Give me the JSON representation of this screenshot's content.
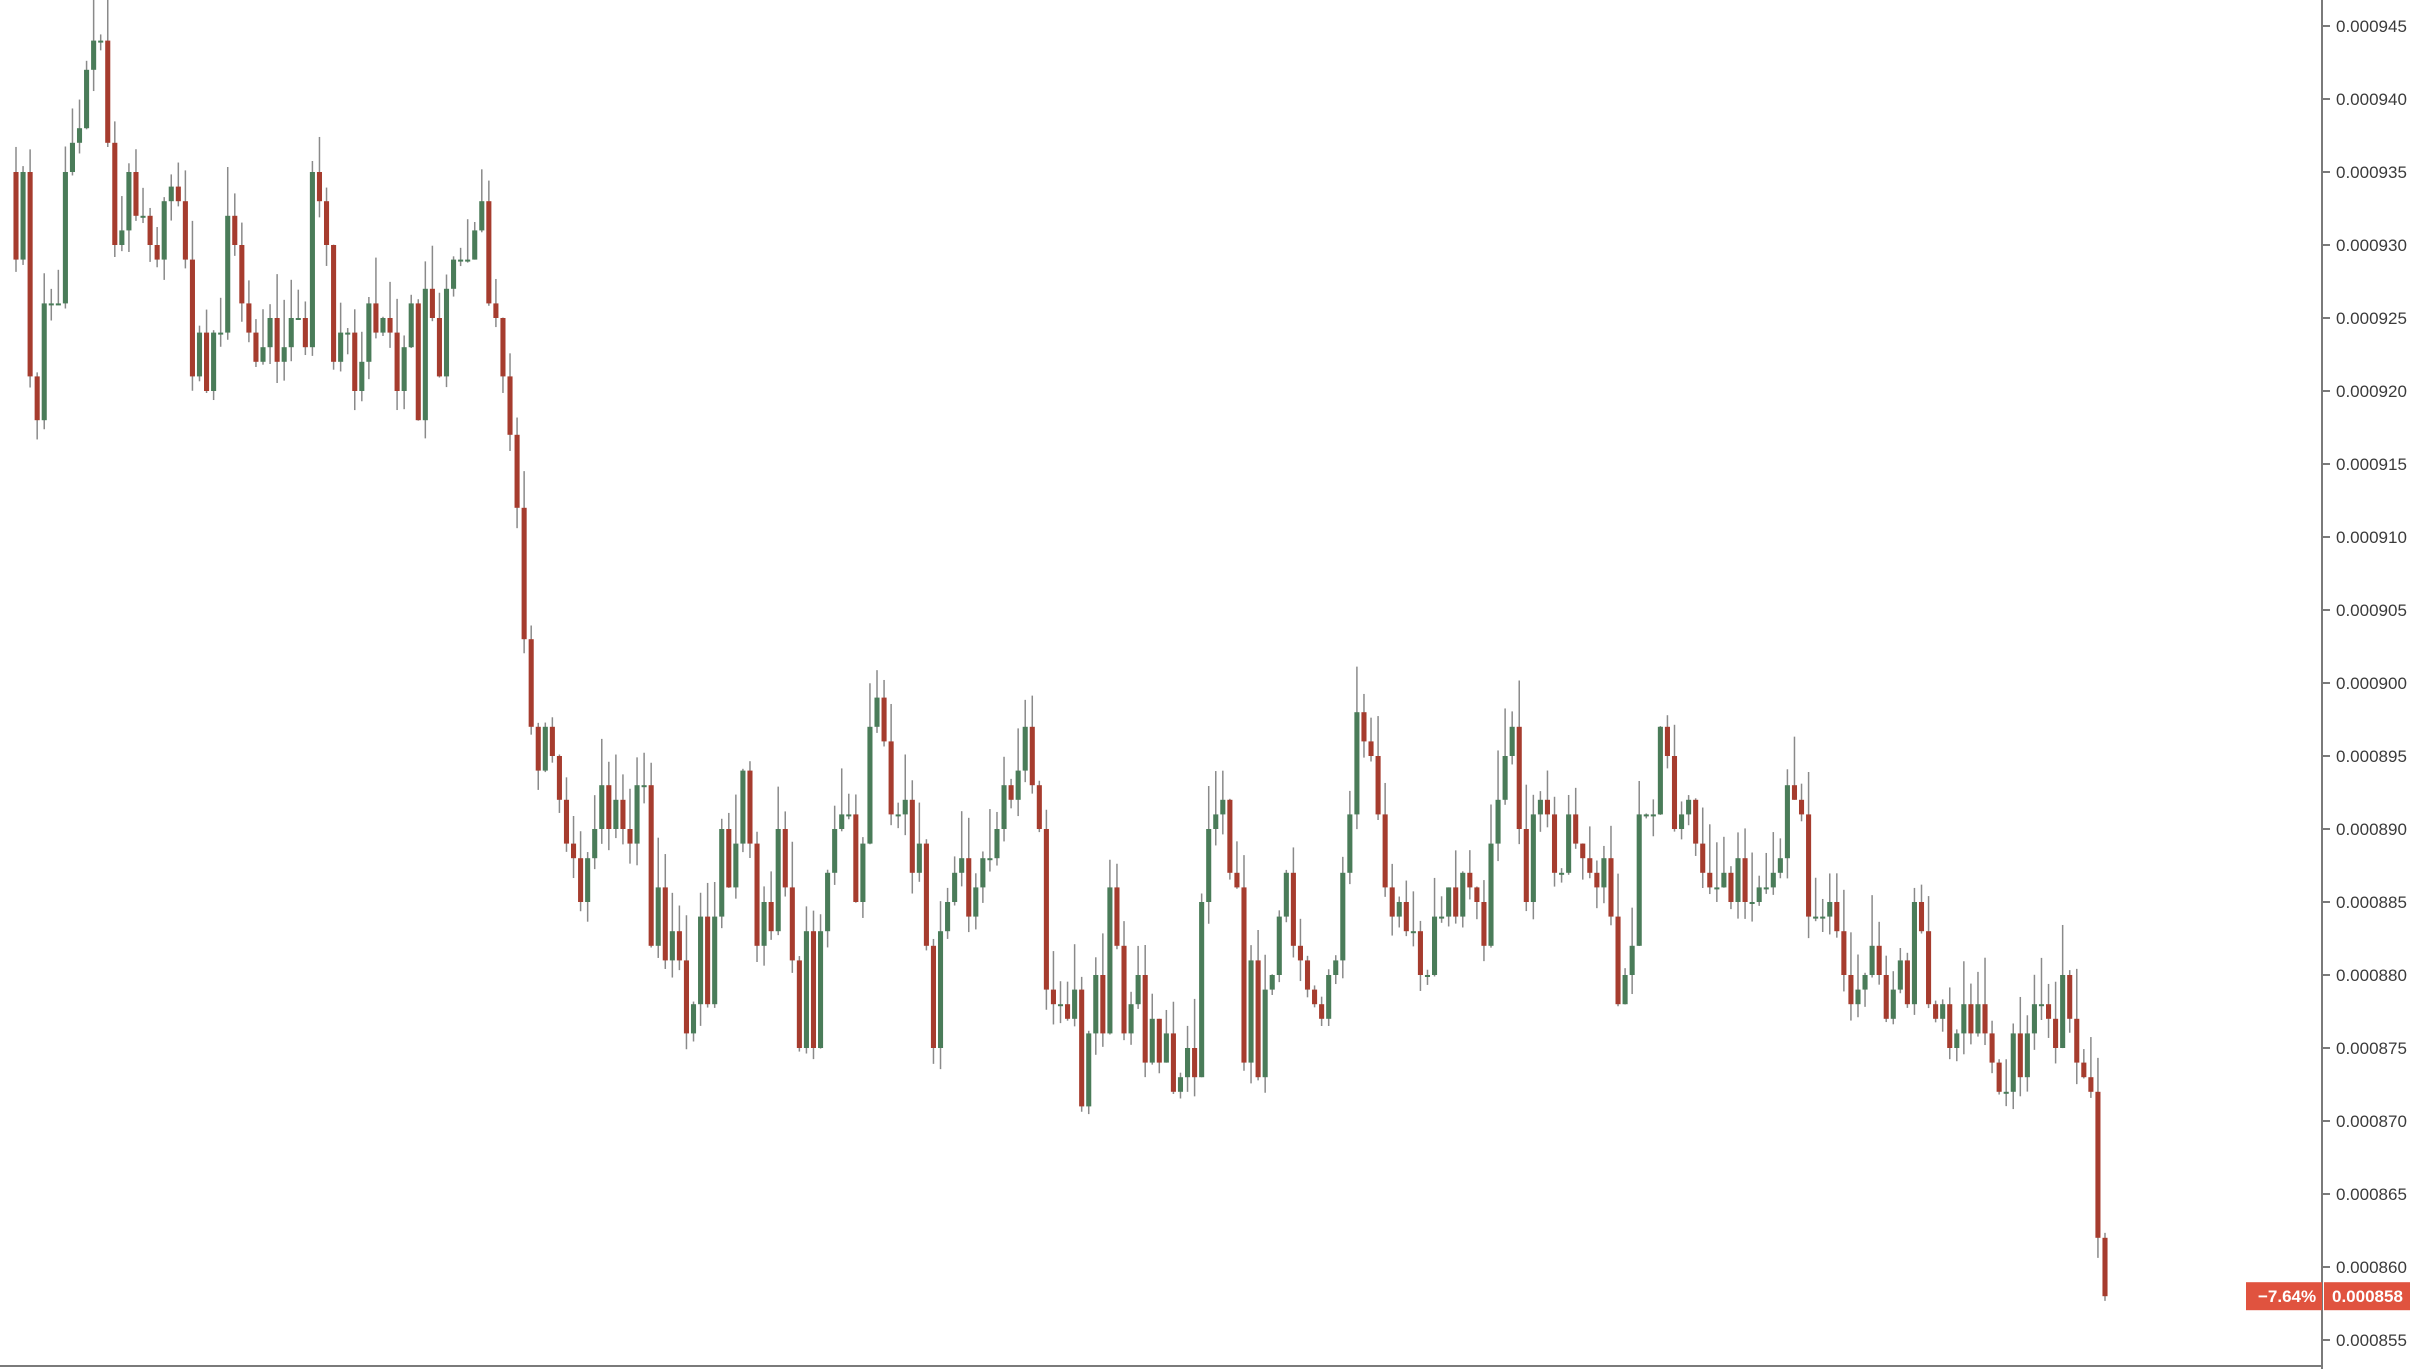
{
  "colors": {
    "up": "#4a7c59",
    "down": "#a63c2e",
    "wick": "#8a8a8a",
    "axis": "#7a7a7a",
    "price_tag_bg": "#e0533f",
    "price_tag_text": "#ffffff",
    "background": "#ffffff"
  },
  "price_tag": {
    "change": "−7.64%",
    "price": "0.000858"
  },
  "chart_data": {
    "type": "candlestick",
    "title": "",
    "xlabel": "",
    "ylabel": "",
    "ylim": [
      0.000854,
      0.000947
    ],
    "grid": false,
    "y_ticks": [
      "0.000945",
      "0.000940",
      "0.000935",
      "0.000930",
      "0.000925",
      "0.000920",
      "0.000915",
      "0.000910",
      "0.000905",
      "0.000900",
      "0.000895",
      "0.000890",
      "0.000885",
      "0.000880",
      "0.000875",
      "0.000870",
      "0.000865",
      "0.000860",
      "0.000855"
    ],
    "y_tick_values": [
      0.000945,
      0.00094,
      0.000935,
      0.00093,
      0.000925,
      0.00092,
      0.000915,
      0.00091,
      0.000905,
      0.0009,
      0.000895,
      0.00089,
      0.000885,
      0.00088,
      0.000875,
      0.00087,
      0.000865,
      0.00086,
      0.000855
    ],
    "last_price": 0.000858,
    "series_close": [
      0.000929,
      0.000935,
      0.000921,
      0.000918,
      0.000926,
      0.000926,
      0.000926,
      0.000935,
      0.000937,
      0.000938,
      0.000942,
      0.000944,
      0.000944,
      0.000937,
      0.00093,
      0.000931,
      0.000935,
      0.000932,
      0.000932,
      0.00093,
      0.000929,
      0.000933,
      0.000934,
      0.000933,
      0.000929,
      0.000921,
      0.000924,
      0.00092,
      0.000924,
      0.000924,
      0.000932,
      0.00093,
      0.000926,
      0.000924,
      0.000922,
      0.000923,
      0.000925,
      0.000922,
      0.000923,
      0.000925,
      0.000925,
      0.000923,
      0.000935,
      0.000933,
      0.00093,
      0.000922,
      0.000924,
      0.000924,
      0.00092,
      0.000922,
      0.000926,
      0.000924,
      0.000925,
      0.000924,
      0.00092,
      0.000923,
      0.000926,
      0.000918,
      0.000927,
      0.000925,
      0.000921,
      0.000927,
      0.000929,
      0.000929,
      0.000929,
      0.000931,
      0.000933,
      0.000926,
      0.000925,
      0.000921,
      0.000917,
      0.000912,
      0.000903,
      0.000897,
      0.000894,
      0.000897,
      0.000895,
      0.000892,
      0.000889,
      0.000888,
      0.000885,
      0.000888,
      0.00089,
      0.000893,
      0.00089,
      0.000892,
      0.00089,
      0.000889,
      0.000893,
      0.000893,
      0.000882,
      0.000886,
      0.000881,
      0.000883,
      0.000881,
      0.000876,
      0.000878,
      0.000884,
      0.000878,
      0.000884,
      0.00089,
      0.000886,
      0.000889,
      0.000894,
      0.000889,
      0.000882,
      0.000885,
      0.000883,
      0.00089,
      0.000886,
      0.000881,
      0.000875,
      0.000883,
      0.000875,
      0.000883,
      0.000887,
      0.00089,
      0.000891,
      0.000891,
      0.000885,
      0.000889,
      0.000897,
      0.000899,
      0.000896,
      0.000891,
      0.000891,
      0.000892,
      0.000887,
      0.000889,
      0.000882,
      0.000875,
      0.000883,
      0.000885,
      0.000887,
      0.000888,
      0.000884,
      0.000886,
      0.000888,
      0.000888,
      0.00089,
      0.000893,
      0.000892,
      0.000894,
      0.000897,
      0.000893,
      0.00089,
      0.000879,
      0.000878,
      0.000878,
      0.000877,
      0.000879,
      0.000871,
      0.000876,
      0.00088,
      0.000876,
      0.000886,
      0.000882,
      0.000876,
      0.000878,
      0.00088,
      0.000874,
      0.000877,
      0.000874,
      0.000876,
      0.000872,
      0.000873,
      0.000875,
      0.000873,
      0.000885,
      0.00089,
      0.000891,
      0.000892,
      0.000887,
      0.000886,
      0.000874,
      0.000881,
      0.000873,
      0.000879,
      0.00088,
      0.000884,
      0.000887,
      0.000882,
      0.000881,
      0.000879,
      0.000878,
      0.000877,
      0.00088,
      0.000881,
      0.000887,
      0.000891,
      0.000898,
      0.000896,
      0.000895,
      0.000891,
      0.000886,
      0.000884,
      0.000885,
      0.000883,
      0.000883,
      0.00088,
      0.00088,
      0.000884,
      0.000884,
      0.000886,
      0.000884,
      0.000887,
      0.000886,
      0.000885,
      0.000882,
      0.000889,
      0.000892,
      0.000895,
      0.000897,
      0.00089,
      0.000885,
      0.000891,
      0.000892,
      0.000891,
      0.000887,
      0.000887,
      0.000891,
      0.000889,
      0.000888,
      0.000887,
      0.000886,
      0.000888,
      0.000884,
      0.000878,
      0.00088,
      0.000882,
      0.000891,
      0.000891,
      0.000891,
      0.000897,
      0.000895,
      0.00089,
      0.000891,
      0.000892,
      0.000889,
      0.000887,
      0.000886,
      0.000886,
      0.000887,
      0.000885,
      0.000888,
      0.000885,
      0.000885,
      0.000886,
      0.000886,
      0.000887,
      0.000888,
      0.000893,
      0.000892,
      0.000891,
      0.000884,
      0.000884,
      0.000884,
      0.000885,
      0.000883,
      0.00088,
      0.000878,
      0.000879,
      0.00088,
      0.000882,
      0.00088,
      0.000877,
      0.000879,
      0.000881,
      0.000878,
      0.000885,
      0.000883,
      0.000878,
      0.000877,
      0.000878,
      0.000875,
      0.000876,
      0.000878,
      0.000876,
      0.000878,
      0.000876,
      0.000874,
      0.000872,
      0.000872,
      0.000876,
      0.000873,
      0.000876,
      0.000878,
      0.000878,
      0.000877,
      0.000875,
      0.00088,
      0.000877,
      0.000874,
      0.000873,
      0.000872,
      0.000862,
      0.000858
    ]
  }
}
